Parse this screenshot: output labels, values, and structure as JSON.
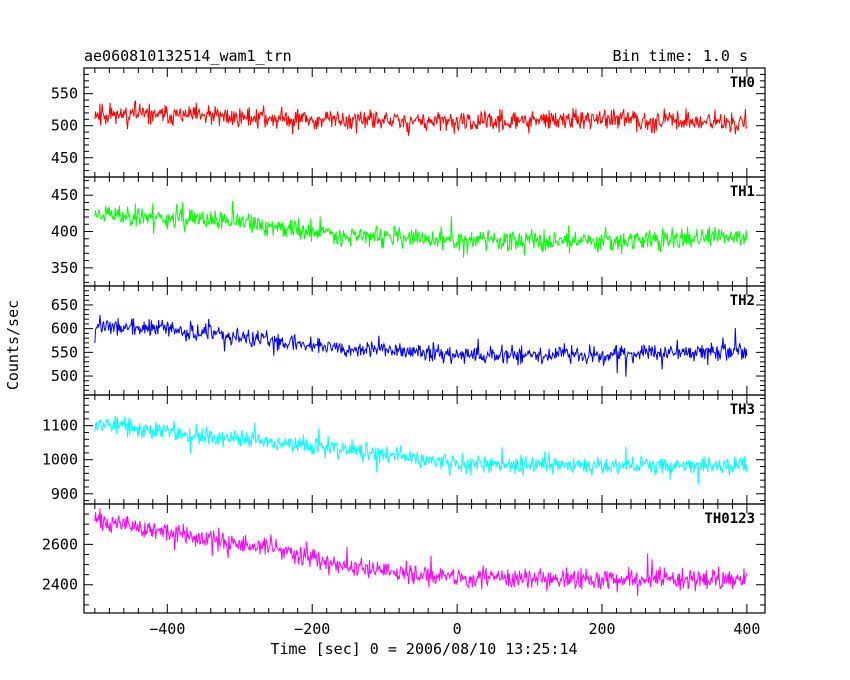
{
  "header": {
    "title": "ae060810132514_wam1_trn",
    "bin_time": "Bin time: 1.0 s"
  },
  "chart_data": {
    "type": "line",
    "xlabel": "Time [sec] 0 = 2006/08/10 13:25:14",
    "ylabel": "Counts/sec",
    "xlim": [
      -515,
      425
    ],
    "x_ticks": [
      -400,
      -200,
      0,
      200,
      400
    ],
    "x_tick_labels": [
      "−400",
      "−200",
      "0",
      "200",
      "400"
    ],
    "x_range": [
      -500,
      400
    ],
    "grid": false,
    "panels": [
      {
        "label": "TH0",
        "color": "#ff0000",
        "ylim": [
          420,
          590
        ],
        "yticks": [
          450,
          500,
          550
        ],
        "ytick_labels": [
          "450",
          "500",
          "550"
        ],
        "trend": [
          [
            -500,
            520
          ],
          [
            -200,
            510
          ],
          [
            0,
            505
          ],
          [
            200,
            510
          ],
          [
            400,
            505
          ]
        ],
        "noise_amplitude": 23,
        "seed": 11
      },
      {
        "label": "TH1",
        "color": "#00ff00",
        "ylim": [
          325,
          475
        ],
        "yticks": [
          350,
          400,
          450
        ],
        "ytick_labels": [
          "350",
          "400",
          "450"
        ],
        "trend": [
          [
            -500,
            425
          ],
          [
            -300,
            412
          ],
          [
            -150,
            395
          ],
          [
            0,
            387
          ],
          [
            200,
            388
          ],
          [
            400,
            392
          ]
        ],
        "noise_amplitude": 21,
        "seed": 23
      },
      {
        "label": "TH2",
        "color": "#0000ff",
        "ylim": [
          460,
          690
        ],
        "yticks": [
          500,
          550,
          600,
          650
        ],
        "ytick_labels": [
          "500",
          "550",
          "600",
          "650"
        ],
        "trend": [
          [
            -500,
            605
          ],
          [
            -400,
            600
          ],
          [
            -300,
            580
          ],
          [
            -150,
            560
          ],
          [
            0,
            545
          ],
          [
            200,
            545
          ],
          [
            400,
            552
          ]
        ],
        "noise_amplitude": 27,
        "seed": 37
      },
      {
        "label": "TH3",
        "color": "#00ffff",
        "ylim": [
          870,
          1190
        ],
        "yticks": [
          900,
          1000,
          1100
        ],
        "ytick_labels": [
          "900",
          "1000",
          "1100"
        ],
        "trend": [
          [
            -500,
            1110
          ],
          [
            -400,
            1080
          ],
          [
            -200,
            1040
          ],
          [
            0,
            990
          ],
          [
            200,
            985
          ],
          [
            400,
            982
          ]
        ],
        "noise_amplitude": 40,
        "seed": 53
      },
      {
        "label": "TH0123",
        "color": "#ff00ff",
        "ylim": [
          2260,
          2800
        ],
        "yticks": [
          2400,
          2600
        ],
        "ytick_labels": [
          "2400",
          "2600"
        ],
        "trend": [
          [
            -500,
            2720
          ],
          [
            -400,
            2660
          ],
          [
            -200,
            2540
          ],
          [
            -100,
            2460
          ],
          [
            0,
            2430
          ],
          [
            200,
            2430
          ],
          [
            400,
            2430
          ]
        ],
        "noise_amplitude": 70,
        "seed": 71
      }
    ]
  }
}
